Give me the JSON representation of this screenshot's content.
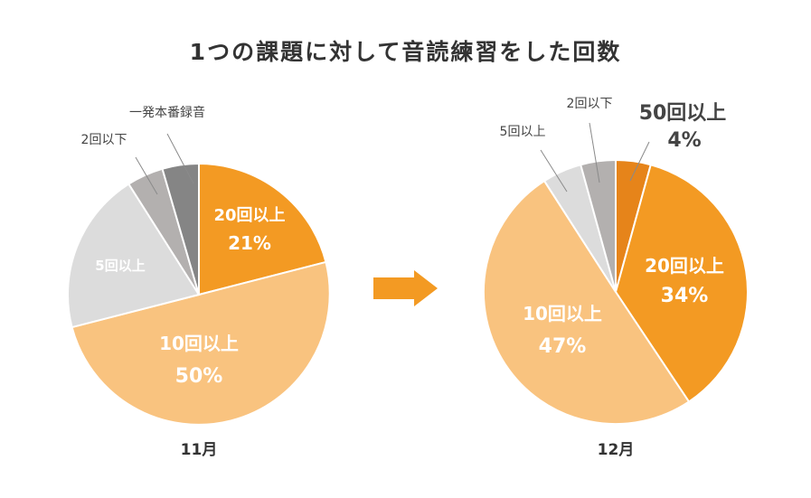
{
  "title": "1つの課題に対して音読練習をした回数",
  "colors": {
    "c50plus": "#E6841A",
    "c20plus": "#F39A23",
    "c10plus": "#F9C37F",
    "c5plus": "#DCDCDC",
    "c2under": "#B3B0AF",
    "cOneShot": "#858585",
    "arrow": "#F39A23"
  },
  "chart_data": [
    {
      "type": "pie",
      "title": "11月",
      "slices": [
        {
          "label": "20回以上",
          "value": 21,
          "value_label": "21%",
          "color_key": "c20plus"
        },
        {
          "label": "10回以上",
          "value": 50,
          "value_label": "50%",
          "color_key": "c10plus"
        },
        {
          "label": "5回以上",
          "value": 20,
          "value_label": "",
          "color_key": "c5plus"
        },
        {
          "label": "2回以下",
          "value": 4.5,
          "value_label": "",
          "color_key": "c2under"
        },
        {
          "label": "一発本番録音",
          "value": 4.5,
          "value_label": "",
          "color_key": "cOneShot"
        }
      ]
    },
    {
      "type": "pie",
      "title": "12月",
      "slices": [
        {
          "label": "50回以上",
          "value": 4,
          "value_label": "4%",
          "color_key": "c50plus"
        },
        {
          "label": "20回以上",
          "value": 34,
          "value_label": "34%",
          "color_key": "c20plus"
        },
        {
          "label": "10回以上",
          "value": 47,
          "value_label": "47%",
          "color_key": "c10plus"
        },
        {
          "label": "5回以上",
          "value": 4.5,
          "value_label": "",
          "color_key": "c5plus"
        },
        {
          "label": "2回以下",
          "value": 4,
          "value_label": "",
          "color_key": "c2under"
        }
      ]
    }
  ]
}
